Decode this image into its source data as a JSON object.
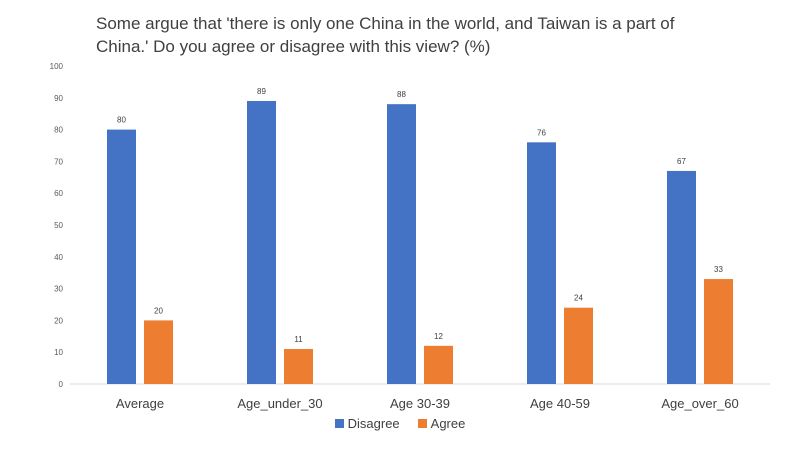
{
  "chart_data": {
    "type": "bar",
    "title_lines": [
      "Some argue that 'there is only one China in the world, and Taiwan is a part of",
      "China.' Do you agree or disagree with this view? (%)"
    ],
    "categories": [
      "Average",
      "Age_under_30",
      "Age 30-39",
      "Age 40-59",
      "Age_over_60"
    ],
    "series": [
      {
        "name": "Disagree",
        "color": "#4472C4",
        "values": [
          80,
          89,
          88,
          76,
          67
        ]
      },
      {
        "name": "Agree",
        "color": "#ED7D31",
        "values": [
          20,
          11,
          12,
          24,
          33
        ]
      }
    ],
    "ylim": [
      0,
      100
    ],
    "yticks": [
      0,
      10,
      20,
      30,
      40,
      50,
      60,
      70,
      80,
      90,
      100
    ],
    "grid": false,
    "data_labels": true,
    "legend_position": "bottom"
  }
}
